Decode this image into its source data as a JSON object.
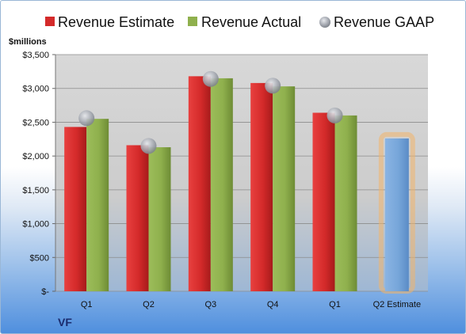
{
  "legend": {
    "estimate_label": "Revenue Estimate",
    "actual_label": "Revenue Actual",
    "gaap_label": "Revenue GAAP"
  },
  "unit_label": "$millions",
  "company": "VF",
  "colors": {
    "estimate": "#d42a2a",
    "actual": "#8fb04d",
    "gaap": "#a8acb4",
    "forecast": "#77a6da",
    "forecast_glow": "#f3b469",
    "plot_bg": "#d6d6d6"
  },
  "chart_data": {
    "type": "bar",
    "categories": [
      "Q1",
      "Q2",
      "Q3",
      "Q4",
      "Q1",
      "Q2 Estimate"
    ],
    "series": [
      {
        "name": "Revenue Estimate",
        "values": [
          2430,
          2160,
          3180,
          3080,
          2640,
          null
        ]
      },
      {
        "name": "Revenue Actual",
        "values": [
          2550,
          2130,
          3150,
          3030,
          2600,
          null
        ]
      },
      {
        "name": "Revenue GAAP",
        "values": [
          2560,
          2150,
          3140,
          3040,
          2600,
          null
        ]
      }
    ],
    "forecast": {
      "category": "Q2 Estimate",
      "value": 2260
    },
    "ylim": [
      0,
      3500
    ],
    "yticks": [
      0,
      500,
      1000,
      1500,
      2000,
      2500,
      3000,
      3500
    ],
    "ytick_labels": [
      "$-",
      "$500",
      "$1,000",
      "$1,500",
      "$2,000",
      "$2,500",
      "$3,000",
      "$3,500"
    ],
    "ylabel": "$millions",
    "grid": true,
    "legend_position": "top"
  }
}
